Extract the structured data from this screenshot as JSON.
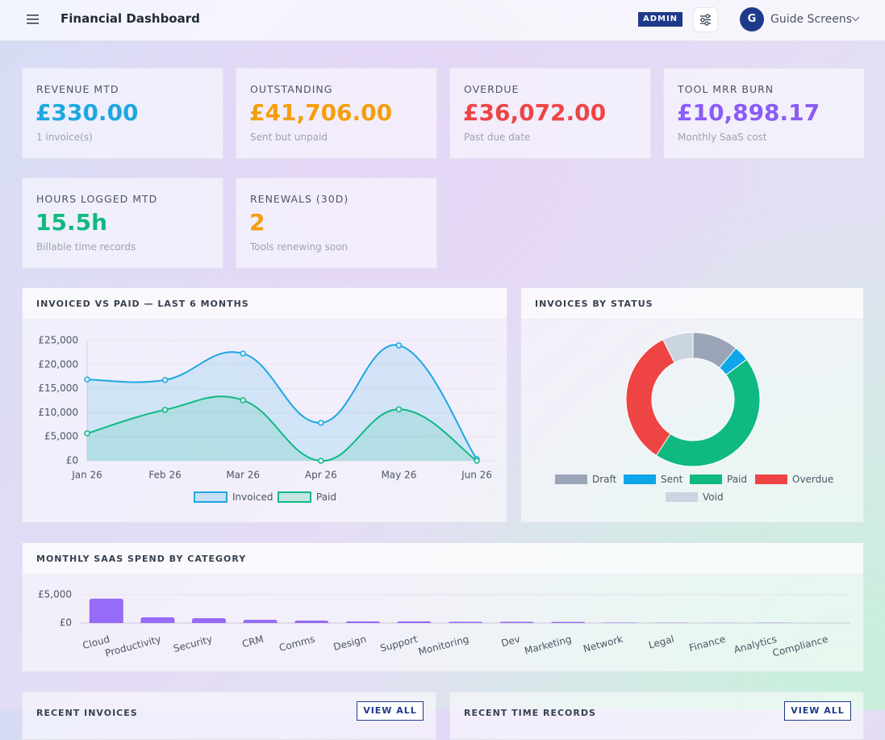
{
  "header": {
    "title": "Financial Dashboard",
    "badge": "ADMIN",
    "avatar": "G",
    "user": "Guide Screens"
  },
  "kpis": [
    {
      "label": "REVENUE MTD",
      "value": "£330.00",
      "note": "1 invoice(s)",
      "color": "#1ea7e1"
    },
    {
      "label": "OUTSTANDING",
      "value": "£41,706.00",
      "note": "Sent but unpaid",
      "color": "#f59e0b"
    },
    {
      "label": "OVERDUE",
      "value": "£36,072.00",
      "note": "Past due date",
      "color": "#ef4444"
    },
    {
      "label": "TOOL MRR BURN",
      "value": "£10,898.17",
      "note": "Monthly SaaS cost",
      "color": "#8b5cf6"
    },
    {
      "label": "HOURS LOGGED MTD",
      "value": "15.5h",
      "note": "Billable time records",
      "color": "#10b981"
    },
    {
      "label": "RENEWALS (30D)",
      "value": "2",
      "note": "Tools renewing soon",
      "color": "#f59e0b"
    }
  ],
  "chart_data": [
    {
      "type": "line",
      "title": "INVOICED VS PAID — LAST 6 MONTHS",
      "categories": [
        "Jan 26",
        "Feb 26",
        "Mar 26",
        "Apr 26",
        "May 26",
        "Jun 26"
      ],
      "series": [
        {
          "name": "Invoiced",
          "color": "#1ea7e1",
          "values": [
            16900,
            16800,
            22300,
            7900,
            24000,
            330
          ]
        },
        {
          "name": "Paid",
          "color": "#10b981",
          "values": [
            5700,
            10600,
            12600,
            0,
            10700,
            0
          ]
        }
      ],
      "ylim": [
        0,
        25000
      ],
      "yticks": [
        {
          "value": 0,
          "label": "£0"
        },
        {
          "value": 5000,
          "label": "£5,000"
        },
        {
          "value": 10000,
          "label": "£10,000"
        },
        {
          "value": 15000,
          "label": "£15,000"
        },
        {
          "value": 20000,
          "label": "£20,000"
        },
        {
          "value": 25000,
          "label": "£25,000"
        }
      ],
      "grid": true
    },
    {
      "type": "doughnut",
      "title": "INVOICES BY STATUS",
      "categories": [
        "Draft",
        "Sent",
        "Paid",
        "Overdue",
        "Void"
      ],
      "values": [
        3,
        1,
        12,
        9,
        2
      ],
      "colors": [
        "#9aa5b8",
        "#0ea5e9",
        "#10b981",
        "#ef4444",
        "#cbd5e1"
      ]
    },
    {
      "type": "bar",
      "title": "MONTHLY SAAS SPEND BY CATEGORY",
      "categories": [
        "Cloud",
        "Productivity",
        "Security",
        "CRM",
        "Comms",
        "Design",
        "Support",
        "Monitoring",
        "Dev",
        "Marketing",
        "Network",
        "Legal",
        "Finance",
        "Analytics",
        "Compliance"
      ],
      "values": [
        4300,
        1000,
        860,
        570,
        430,
        290,
        290,
        210,
        210,
        200,
        80,
        30,
        10,
        40,
        0
      ],
      "color": "#8b5cf6",
      "ylim": [
        0,
        5000
      ],
      "yticks": [
        {
          "value": 0,
          "label": "£0"
        },
        {
          "value": 5000,
          "label": "£5,000"
        }
      ],
      "grid": true
    }
  ],
  "panels": [
    {
      "title": "RECENT INVOICES",
      "action": "VIEW ALL"
    },
    {
      "title": "RECENT TIME RECORDS",
      "action": "VIEW ALL"
    }
  ]
}
